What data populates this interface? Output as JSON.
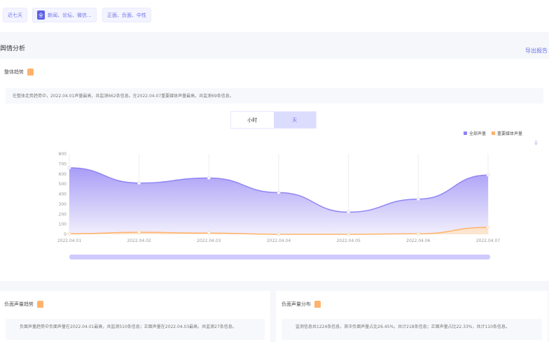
{
  "filters": {
    "time": "近七天",
    "source_badge": "全",
    "sources": "新闻、论坛、微信...",
    "sentiment": "正面、负面、中性"
  },
  "section": {
    "title": "舆情分析",
    "export_label": "导出报告"
  },
  "trend": {
    "title": "整体趋势",
    "summary": "在整体走势趋势中，2022.04.01声量最高，共监测662条信息。在2022.04.07重要媒体声量最高，共监测69条信息。",
    "toggle": [
      "小时",
      "天"
    ],
    "active_toggle": "天"
  },
  "chart_data": {
    "type": "area",
    "x": [
      "2022.04.01",
      "2022.04.02",
      "2022.04.03",
      "2022.04.04",
      "2022.04.05",
      "2022.04.06",
      "2022.04.07"
    ],
    "series": [
      {
        "name": "全部声量",
        "values": [
          662,
          510,
          560,
          415,
          220,
          350,
          590
        ],
        "color": "#8f85f5"
      },
      {
        "name": "重要媒体声量",
        "values": [
          5,
          20,
          12,
          0,
          0,
          5,
          69
        ],
        "color": "#ffb26b"
      }
    ],
    "ylim": [
      0,
      800
    ],
    "yticks": [
      0,
      100,
      200,
      300,
      400,
      500,
      600,
      700,
      800
    ],
    "legend": "top-right",
    "grid": "vertical"
  },
  "negative_trend": {
    "title": "负面声量趋势",
    "summary": "负面声量趋势中负面声量在2022.04.01最高，共监测510条信息；正面声量在2022.04.03最高，共监测27条信息。"
  },
  "negative_dist": {
    "title": "负面声量分布",
    "summary": "监测信息共1224条信息，其中负面声量占比26.45%，共计218条信息；正面声量占比22.33%，共计110条信息。"
  }
}
